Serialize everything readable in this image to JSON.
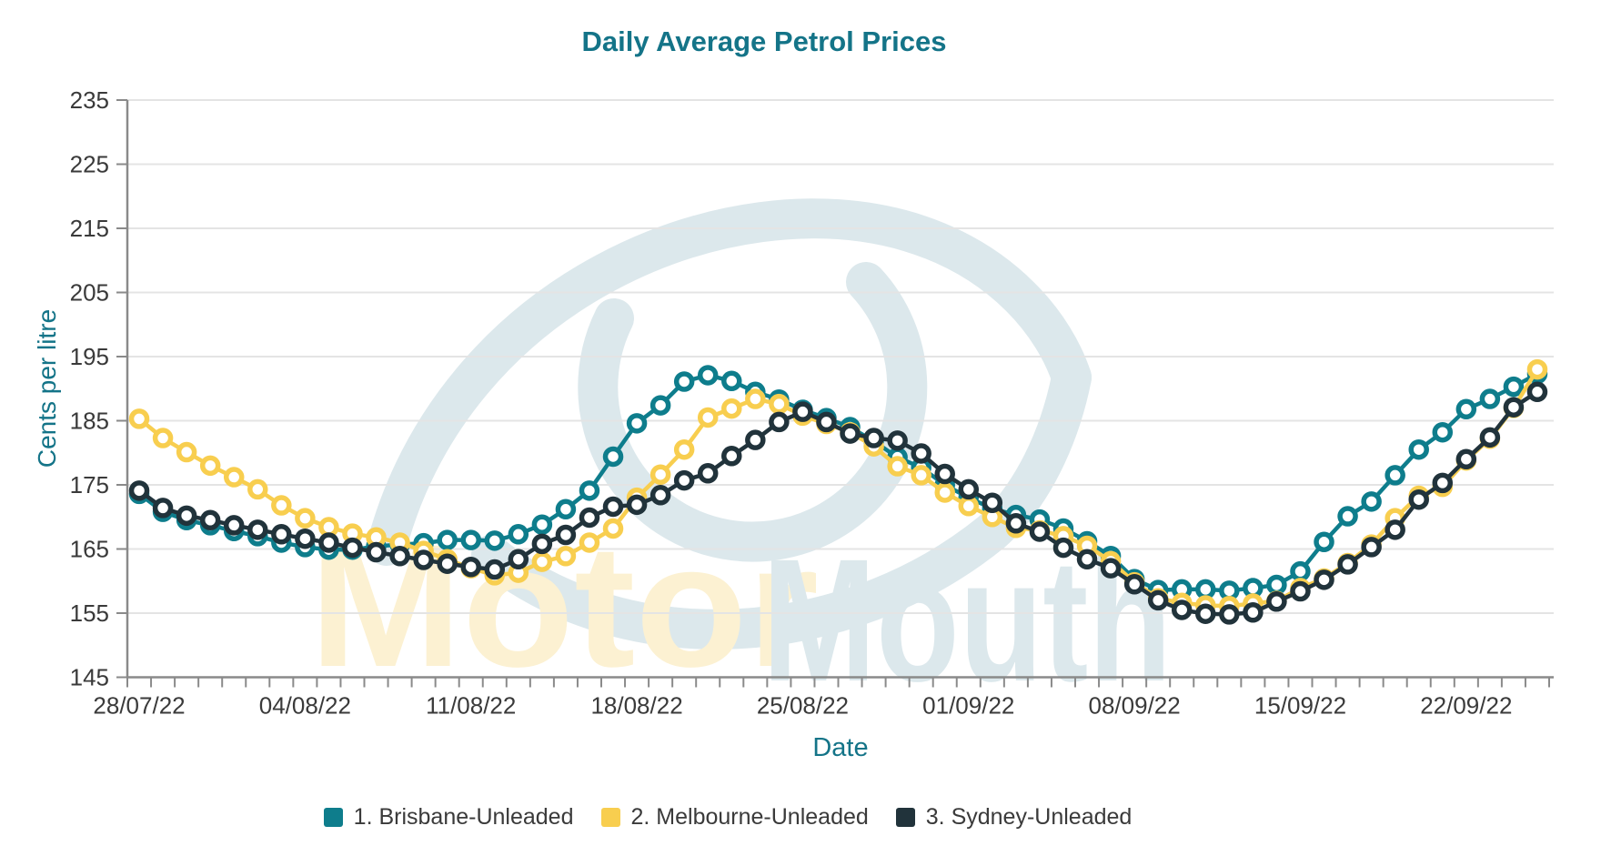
{
  "watermark": {
    "word1": "Motor",
    "word2": "Mouth",
    "word1_color": "#FCF1D2",
    "word2_color": "#DCE8EC",
    "eye_color": "#DCE8EC"
  },
  "colors": {
    "title_text": "#147488",
    "axis_text": "#3A3A3A",
    "grid_line": "#E4E4E4",
    "axis_line": "#8A8A8A",
    "background": "#FFFFFF"
  },
  "legend": [
    {
      "label": "1. Brisbane-Unleaded",
      "color": "#0E7D8C"
    },
    {
      "label": "2. Melbourne-Unleaded",
      "color": "#F8CE4F"
    },
    {
      "label": "3. Sydney-Unleaded",
      "color": "#21333B"
    }
  ],
  "chart_data": {
    "type": "line",
    "title": "Daily Average Petrol Prices",
    "xlabel": "Date",
    "ylabel": "Cents per litre",
    "ylim": [
      145,
      235
    ],
    "ytick_step": 10,
    "grid": true,
    "legend_position": "bottom",
    "marker": "open-circle",
    "x_tick_labels": [
      "28/07/22",
      "04/08/22",
      "11/08/22",
      "18/08/22",
      "25/08/22",
      "01/09/22",
      "08/09/22",
      "15/09/22",
      "22/09/22"
    ],
    "x_tick_every_days": 7,
    "categories": [
      "28/07/22",
      "29/07/22",
      "30/07/22",
      "31/07/22",
      "01/08/22",
      "02/08/22",
      "03/08/22",
      "04/08/22",
      "05/08/22",
      "06/08/22",
      "07/08/22",
      "08/08/22",
      "09/08/22",
      "10/08/22",
      "11/08/22",
      "12/08/22",
      "13/08/22",
      "14/08/22",
      "15/08/22",
      "16/08/22",
      "17/08/22",
      "18/08/22",
      "19/08/22",
      "20/08/22",
      "21/08/22",
      "22/08/22",
      "23/08/22",
      "24/08/22",
      "25/08/22",
      "26/08/22",
      "27/08/22",
      "28/08/22",
      "29/08/22",
      "30/08/22",
      "31/08/22",
      "01/09/22",
      "02/09/22",
      "03/09/22",
      "04/09/22",
      "05/09/22",
      "06/09/22",
      "07/09/22",
      "08/09/22",
      "09/09/22",
      "10/09/22",
      "11/09/22",
      "12/09/22",
      "13/09/22",
      "14/09/22",
      "15/09/22",
      "16/09/22",
      "17/09/22",
      "18/09/22",
      "19/09/22",
      "20/09/22",
      "21/09/22",
      "22/09/22",
      "23/09/22",
      "24/09/22",
      "25/09/22"
    ],
    "series": [
      {
        "name": "1. Brisbane-Unleaded",
        "color": "#0E7D8C",
        "values": [
          173.6,
          170.8,
          169.5,
          168.7,
          167.8,
          167.0,
          166.0,
          165.3,
          164.9,
          164.9,
          165.4,
          165.7,
          165.9,
          166.4,
          166.4,
          166.3,
          167.3,
          168.8,
          171.2,
          174.1,
          179.4,
          184.6,
          187.4,
          191.1,
          192.1,
          191.2,
          189.5,
          188.3,
          186.7,
          185.4,
          184.0,
          181.8,
          179.3,
          177.7,
          175.0,
          173.0,
          171.3,
          170.3,
          169.6,
          168.2,
          166.2,
          163.9,
          160.3,
          158.6,
          158.7,
          158.7,
          158.5,
          158.9,
          159.4,
          161.5,
          166.1,
          170.1,
          172.4,
          176.5,
          180.5,
          183.2,
          186.8,
          188.4,
          190.3,
          192.3
        ]
      },
      {
        "name": "2. Melbourne-Unleaded",
        "color": "#F8CE4F",
        "values": [
          185.3,
          182.3,
          180.1,
          178.0,
          176.2,
          174.3,
          171.8,
          169.8,
          168.4,
          167.4,
          166.8,
          166.0,
          164.7,
          163.4,
          162.0,
          160.9,
          161.3,
          163.0,
          163.9,
          166.0,
          168.2,
          173.0,
          176.6,
          180.5,
          185.5,
          186.9,
          188.4,
          187.6,
          185.8,
          184.5,
          183.2,
          181.0,
          177.9,
          176.5,
          173.8,
          171.7,
          170.0,
          168.3,
          167.9,
          167.0,
          165.5,
          163.1,
          159.8,
          157.3,
          156.6,
          156.2,
          156.1,
          156.5,
          156.9,
          158.9,
          160.4,
          162.8,
          165.7,
          169.8,
          173.3,
          174.7,
          178.8,
          182.2,
          187.0,
          193.0
        ]
      },
      {
        "name": "3. Sydney-Unleaded",
        "color": "#21333B",
        "values": [
          174.1,
          171.4,
          170.2,
          169.5,
          168.7,
          168.0,
          167.3,
          166.6,
          166.0,
          165.2,
          164.5,
          163.9,
          163.3,
          162.7,
          162.2,
          161.8,
          163.4,
          165.8,
          167.2,
          169.9,
          171.6,
          171.9,
          173.4,
          175.7,
          176.8,
          179.5,
          182.0,
          184.8,
          186.4,
          184.8,
          183.0,
          182.3,
          181.9,
          179.9,
          176.7,
          174.3,
          172.2,
          169.0,
          167.7,
          165.2,
          163.4,
          162.0,
          159.5,
          157.0,
          155.5,
          154.9,
          154.8,
          155.1,
          156.8,
          158.4,
          160.2,
          162.6,
          165.3,
          168.0,
          172.7,
          175.3,
          179.0,
          182.4,
          187.1,
          189.5
        ]
      }
    ]
  }
}
